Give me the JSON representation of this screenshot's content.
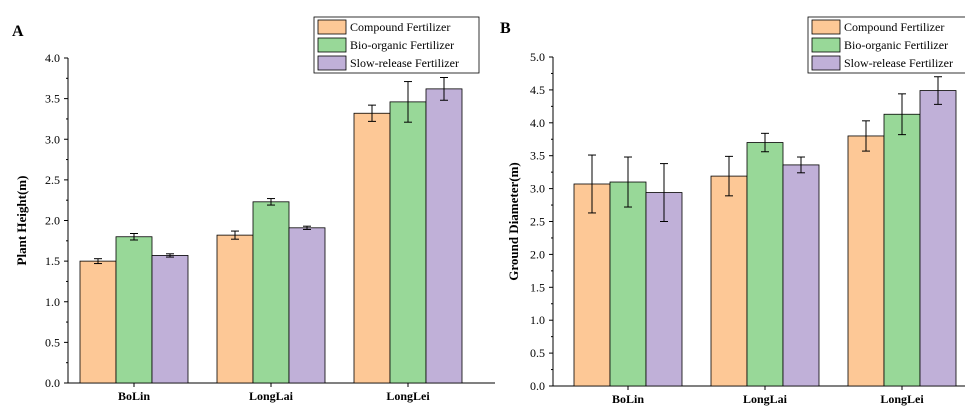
{
  "colors": {
    "compound": "#fdc896",
    "bio": "#98d898",
    "slow": "#c0b0d8",
    "stroke": "#000000"
  },
  "chart_data": [
    {
      "type": "bar",
      "panel_label": "A",
      "categories": [
        "BoLin",
        "LongLai",
        "LongLei"
      ],
      "ylabel": "Plant Height(m)",
      "xlabel": "",
      "ylim": [
        0,
        4.0
      ],
      "yticks": [
        "0.0",
        "0.5",
        "1.0",
        "1.5",
        "2.0",
        "2.5",
        "3.0",
        "3.5",
        "4.0"
      ],
      "legend_position": "top-right",
      "series": [
        {
          "name": "Compound Fertilizer",
          "values": [
            1.5,
            1.82,
            3.32
          ],
          "errors": [
            0.03,
            0.05,
            0.1
          ]
        },
        {
          "name": "Bio-organic Fertilizer",
          "values": [
            1.8,
            2.23,
            3.46
          ],
          "errors": [
            0.04,
            0.04,
            0.25
          ]
        },
        {
          "name": "Slow-release Fertilizer",
          "values": [
            1.57,
            1.91,
            3.62
          ],
          "errors": [
            0.02,
            0.02,
            0.14
          ]
        }
      ]
    },
    {
      "type": "bar",
      "panel_label": "B",
      "categories": [
        "BoLin",
        "LongLai",
        "LongLei"
      ],
      "ylabel": "Ground Diameter(m)",
      "xlabel": "",
      "ylim": [
        0,
        5.0
      ],
      "yticks": [
        "0.0",
        "0.5",
        "1.0",
        "1.5",
        "2.0",
        "2.5",
        "3.0",
        "3.5",
        "4.0",
        "4.5",
        "5.0"
      ],
      "legend_position": "top-right",
      "series": [
        {
          "name": "Compound Fertilizer",
          "values": [
            3.07,
            3.19,
            3.8
          ],
          "errors": [
            0.44,
            0.3,
            0.23
          ]
        },
        {
          "name": "Bio-organic Fertilizer",
          "values": [
            3.1,
            3.7,
            4.13
          ],
          "errors": [
            0.38,
            0.14,
            0.31
          ]
        },
        {
          "name": "Slow-release Fertilizer",
          "values": [
            2.94,
            3.36,
            4.49
          ],
          "errors": [
            0.44,
            0.12,
            0.21
          ]
        }
      ]
    }
  ]
}
